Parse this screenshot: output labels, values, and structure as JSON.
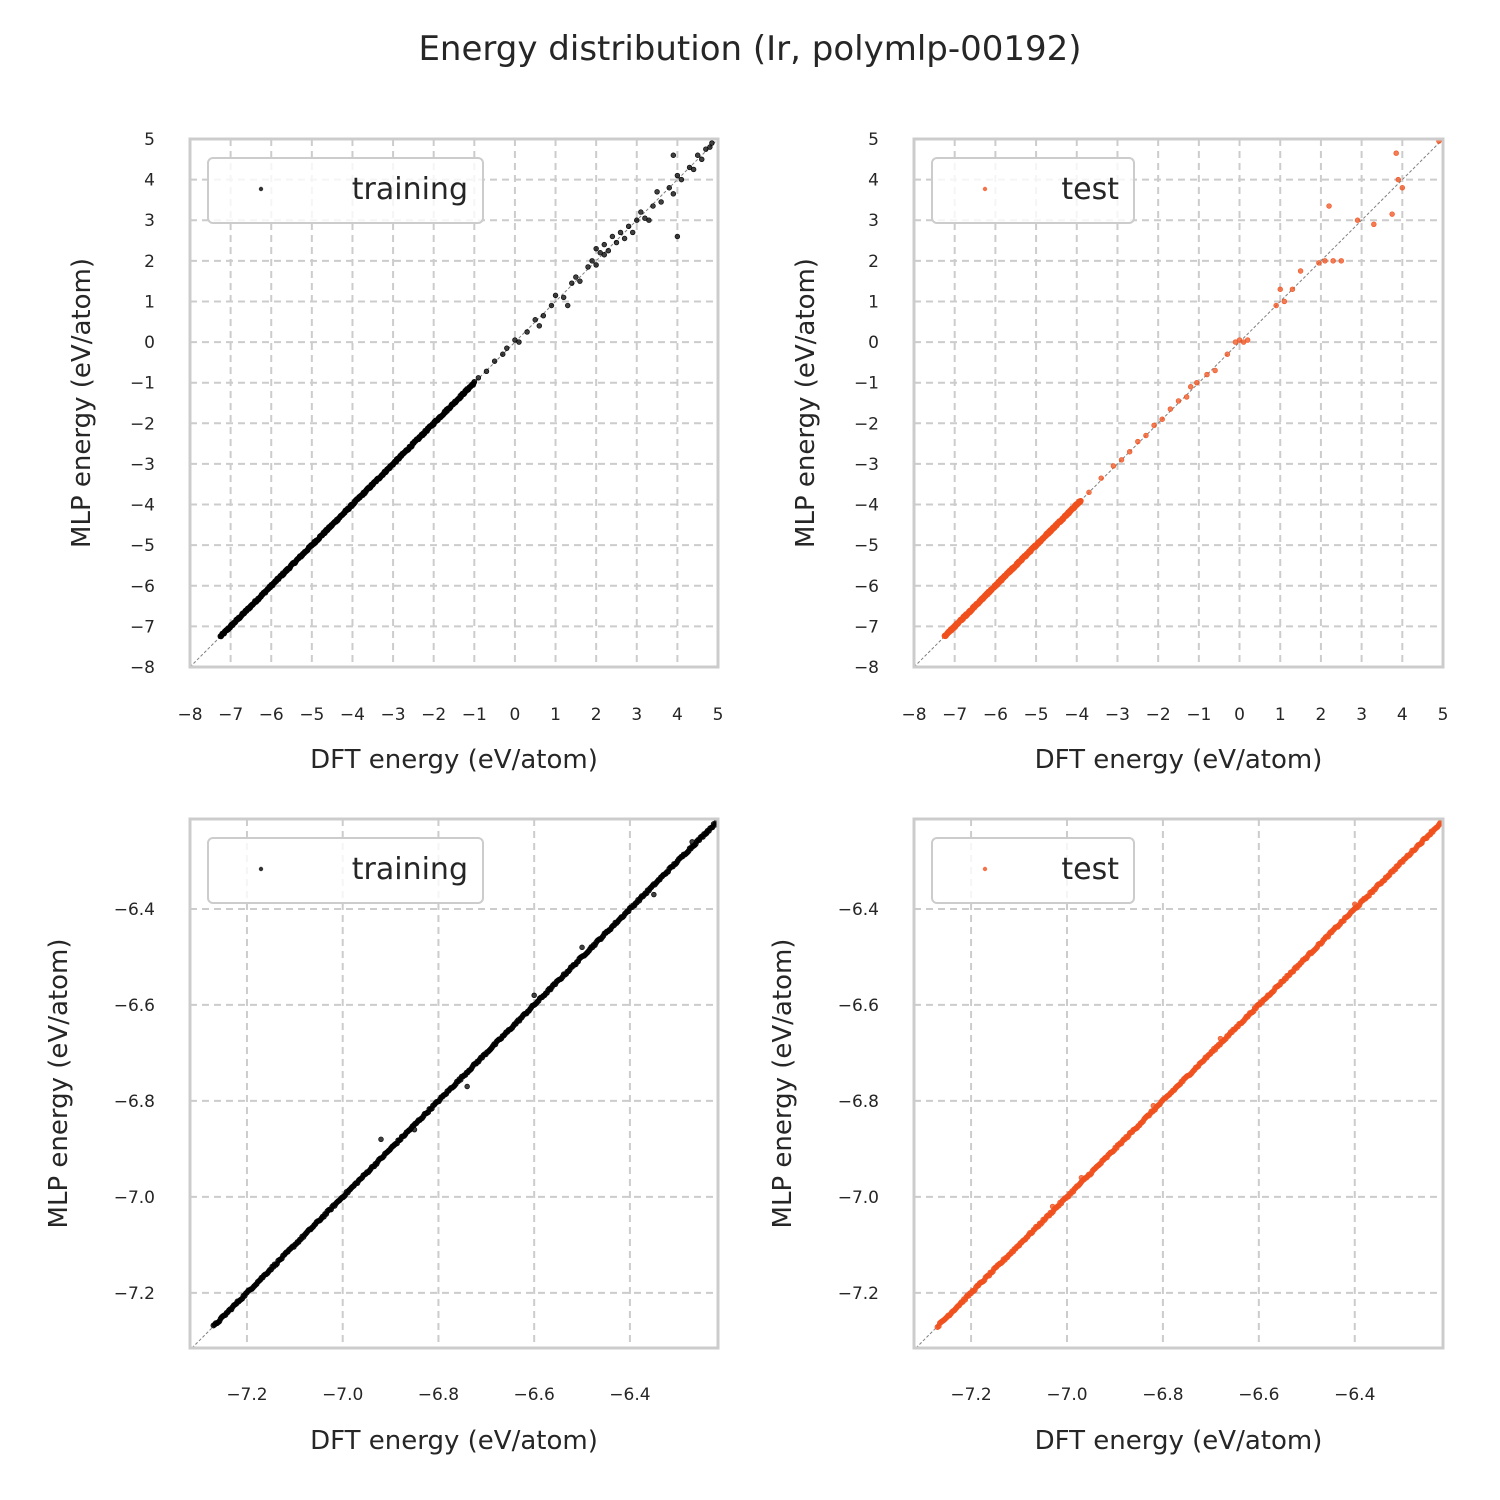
{
  "chart_data": {
    "title": "Energy distribution (Ir, polymlp-00192)",
    "colors": {
      "training": "#000000",
      "test": "#f0511e",
      "grid": "#cccccc",
      "spine": "#cccccc",
      "diagonal": "#808080"
    },
    "panels": [
      {
        "id": "top-left",
        "type": "scatter",
        "legend": "training",
        "legend_position": "upper-left",
        "series_name": "training",
        "xlabel": "DFT energy (eV/atom)",
        "ylabel": "MLP energy (eV/atom)",
        "xlim": [
          -8,
          5
        ],
        "ylim": [
          -8,
          5
        ],
        "xticks": [
          "−8",
          "−7",
          "−6",
          "−5",
          "−4",
          "−3",
          "−2",
          "−1",
          "0",
          "1",
          "2",
          "3",
          "4",
          "5"
        ],
        "yticks": [
          "−8",
          "−7",
          "−6",
          "−5",
          "−4",
          "−3",
          "−2",
          "−1",
          "0",
          "1",
          "2",
          "3",
          "4",
          "5"
        ],
        "grid": true,
        "diagonal": true,
        "dense_band": [
          -7.25,
          -1.0
        ],
        "points": [
          [
            -0.9,
            -0.88
          ],
          [
            -0.7,
            -0.72
          ],
          [
            -0.5,
            -0.47
          ],
          [
            -0.3,
            -0.3
          ],
          [
            -0.2,
            -0.15
          ],
          [
            0.0,
            0.05
          ],
          [
            0.1,
            0.0
          ],
          [
            0.3,
            0.25
          ],
          [
            0.5,
            0.55
          ],
          [
            0.7,
            0.65
          ],
          [
            0.9,
            0.9
          ],
          [
            1.0,
            1.15
          ],
          [
            1.2,
            1.1
          ],
          [
            1.4,
            1.45
          ],
          [
            1.5,
            1.6
          ],
          [
            1.6,
            1.5
          ],
          [
            1.8,
            1.85
          ],
          [
            1.9,
            2.0
          ],
          [
            2.0,
            1.9
          ],
          [
            2.1,
            2.2
          ],
          [
            2.2,
            2.15
          ],
          [
            2.3,
            2.25
          ],
          [
            2.4,
            2.6
          ],
          [
            2.5,
            2.45
          ],
          [
            2.6,
            2.7
          ],
          [
            2.7,
            2.55
          ],
          [
            2.8,
            2.85
          ],
          [
            2.9,
            2.7
          ],
          [
            3.0,
            3.0
          ],
          [
            3.1,
            3.2
          ],
          [
            3.2,
            3.05
          ],
          [
            3.4,
            3.35
          ],
          [
            3.5,
            3.7
          ],
          [
            3.6,
            3.45
          ],
          [
            3.8,
            3.8
          ],
          [
            3.9,
            3.65
          ],
          [
            4.0,
            4.1
          ],
          [
            4.1,
            4.0
          ],
          [
            4.3,
            4.3
          ],
          [
            4.4,
            4.25
          ],
          [
            4.5,
            4.6
          ],
          [
            4.6,
            4.5
          ],
          [
            4.7,
            4.75
          ],
          [
            4.8,
            4.8
          ],
          [
            4.85,
            4.9
          ],
          [
            4.0,
            2.6
          ],
          [
            3.9,
            4.6
          ],
          [
            2.2,
            2.4
          ],
          [
            1.3,
            0.9
          ],
          [
            0.6,
            0.4
          ],
          [
            3.3,
            3.0
          ],
          [
            2.0,
            2.3
          ]
        ]
      },
      {
        "id": "top-right",
        "type": "scatter",
        "legend": "test",
        "legend_position": "upper-left",
        "series_name": "test",
        "xlabel": "DFT energy (eV/atom)",
        "ylabel": "MLP energy (eV/atom)",
        "xlim": [
          -8,
          5
        ],
        "ylim": [
          -8,
          5
        ],
        "xticks": [
          "−8",
          "−7",
          "−6",
          "−5",
          "−4",
          "−3",
          "−2",
          "−1",
          "0",
          "1",
          "2",
          "3",
          "4",
          "5"
        ],
        "yticks": [
          "−8",
          "−7",
          "−6",
          "−5",
          "−4",
          "−3",
          "−2",
          "−1",
          "0",
          "1",
          "2",
          "3",
          "4",
          "5"
        ],
        "grid": true,
        "diagonal": true,
        "dense_band": [
          -7.25,
          -3.9
        ],
        "points": [
          [
            -3.7,
            -3.7
          ],
          [
            -3.4,
            -3.35
          ],
          [
            -3.1,
            -3.05
          ],
          [
            -2.9,
            -2.9
          ],
          [
            -2.7,
            -2.7
          ],
          [
            -2.5,
            -2.45
          ],
          [
            -2.3,
            -2.3
          ],
          [
            -2.1,
            -2.05
          ],
          [
            -1.9,
            -1.9
          ],
          [
            -1.7,
            -1.65
          ],
          [
            -1.5,
            -1.45
          ],
          [
            -1.3,
            -1.35
          ],
          [
            -1.2,
            -1.1
          ],
          [
            -1.05,
            -1.0
          ],
          [
            -0.8,
            -0.8
          ],
          [
            -0.6,
            -0.7
          ],
          [
            -0.3,
            -0.3
          ],
          [
            -0.1,
            0.0
          ],
          [
            0.0,
            0.05
          ],
          [
            0.1,
            0.0
          ],
          [
            0.2,
            0.05
          ],
          [
            0.9,
            0.9
          ],
          [
            1.0,
            1.3
          ],
          [
            1.1,
            1.0
          ],
          [
            1.3,
            1.3
          ],
          [
            1.5,
            1.75
          ],
          [
            1.95,
            1.95
          ],
          [
            2.1,
            2.0
          ],
          [
            2.2,
            3.35
          ],
          [
            2.3,
            2.0
          ],
          [
            2.5,
            2.0
          ],
          [
            2.9,
            3.0
          ],
          [
            3.3,
            2.9
          ],
          [
            3.75,
            3.15
          ],
          [
            3.9,
            4.0
          ],
          [
            3.85,
            4.65
          ],
          [
            4.0,
            3.8
          ],
          [
            4.9,
            4.95
          ]
        ]
      },
      {
        "id": "bottom-left",
        "type": "scatter",
        "legend": "training",
        "legend_position": "upper-left",
        "series_name": "training",
        "xlabel": "DFT energy (eV/atom)",
        "ylabel": "MLP energy (eV/atom)",
        "xlim": [
          -7.319,
          -6.216
        ],
        "ylim": [
          -7.315,
          -6.2125
        ],
        "xticks": [
          "−7.2",
          "−7.0",
          "−6.8",
          "−6.6",
          "−6.4"
        ],
        "yticks": [
          "−7.2",
          "−7.0",
          "−6.8",
          "−6.6",
          "−6.4"
        ],
        "grid": true,
        "diagonal": true,
        "dense_band": [
          -7.27,
          -6.22
        ],
        "points": [
          [
            -6.92,
            -6.88
          ],
          [
            -6.74,
            -6.77
          ],
          [
            -6.5,
            -6.48
          ],
          [
            -6.27,
            -6.26
          ],
          [
            -6.6,
            -6.58
          ],
          [
            -6.85,
            -6.86
          ],
          [
            -7.0,
            -7.0
          ],
          [
            -6.45,
            -6.45
          ],
          [
            -6.35,
            -6.37
          ],
          [
            -6.24,
            -6.24
          ]
        ]
      },
      {
        "id": "bottom-right",
        "type": "scatter",
        "legend": "test",
        "legend_position": "upper-left",
        "series_name": "test",
        "xlabel": "DFT energy (eV/atom)",
        "ylabel": "MLP energy (eV/atom)",
        "xlim": [
          -7.319,
          -6.216
        ],
        "ylim": [
          -7.315,
          -6.2125
        ],
        "xticks": [
          "−7.2",
          "−7.0",
          "−6.8",
          "−6.6",
          "−6.4"
        ],
        "yticks": [
          "−7.2",
          "−7.0",
          "−6.8",
          "−6.6",
          "−6.4"
        ],
        "grid": true,
        "diagonal": true,
        "dense_band": [
          -7.27,
          -6.22
        ],
        "points": [
          [
            -7.03,
            -7.02
          ],
          [
            -6.97,
            -6.96
          ],
          [
            -6.6,
            -6.6
          ],
          [
            -6.4,
            -6.39
          ],
          [
            -6.33,
            -6.33
          ],
          [
            -6.26,
            -6.26
          ],
          [
            -6.24,
            -6.24
          ],
          [
            -6.68,
            -6.67
          ],
          [
            -6.82,
            -6.81
          ],
          [
            -7.1,
            -7.1
          ]
        ]
      }
    ]
  }
}
